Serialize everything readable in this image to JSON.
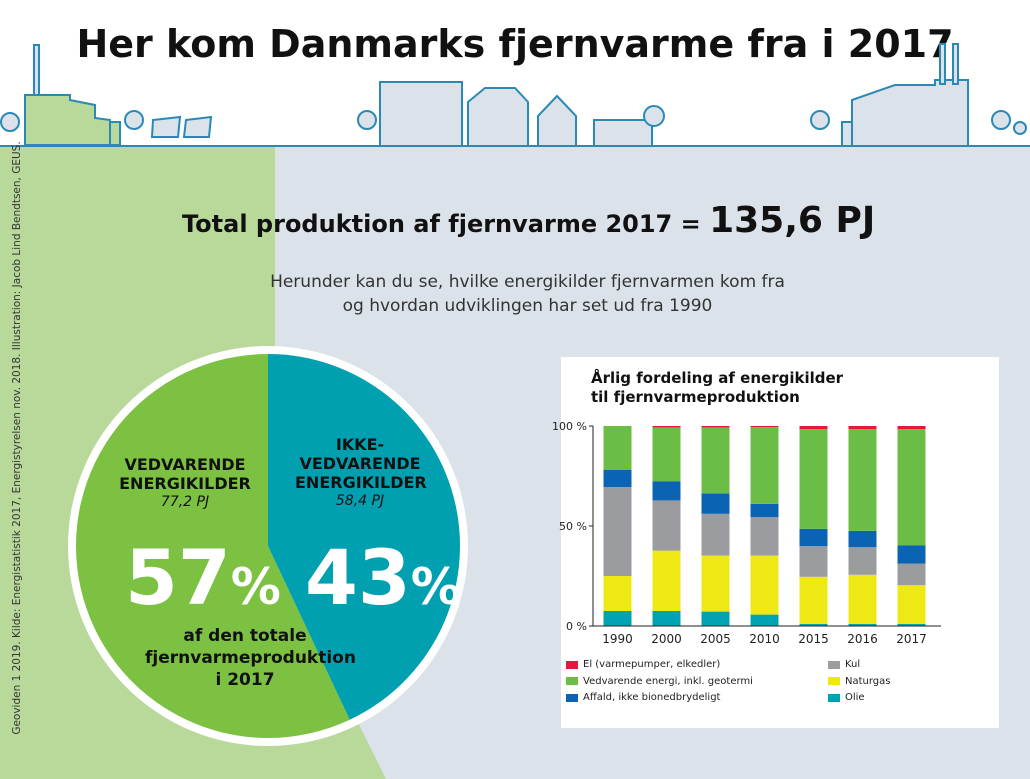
{
  "title": "Her kom Danmarks fjernvarme fra i 2017",
  "total": {
    "label": "Total produktion af fjernvarme 2017 =",
    "value": "135,6 PJ"
  },
  "subtitle": [
    "Herunder kan du se, hvilke energikilder fjernvarmen kom fra",
    "og hvordan udviklingen har set ud fra 1990"
  ],
  "credit": "Geoviden 1 2019. Kilde: Energistatistik 2017, Energistyrelsen nov. 2018. Illustration: Jacob Lind Bendtsen, GEUS.",
  "pie": {
    "renewable": {
      "label1": "VEDVARENDE",
      "label2": "ENERGIKILDER",
      "pj": "77,2 PJ",
      "pct": "57",
      "pct_value": 57,
      "color": "#7dc142"
    },
    "nonrenewable": {
      "label1": "IKKE-",
      "label2": "VEDVARENDE",
      "label3": "ENERGIKILDER",
      "pj": "58,4 PJ",
      "pct": "43",
      "pct_value": 43,
      "color": "#00a0b0"
    },
    "pct_sign": "%",
    "caption": [
      "af den totale",
      "fjernvarmeproduktion",
      "i 2017"
    ]
  },
  "chart_data": {
    "type": "bar",
    "stacked": true,
    "title": [
      "Årlig fordeling af energikilder",
      "til fjernvarmeproduktion"
    ],
    "categories": [
      "1990",
      "2000",
      "2005",
      "2010",
      "2015",
      "2016",
      "2017"
    ],
    "ylim": [
      0,
      100
    ],
    "yticks": [
      {
        "v": 0,
        "label": "0 %"
      },
      {
        "v": 50,
        "label": "50 %"
      },
      {
        "v": 100,
        "label": "100 %"
      }
    ],
    "series": [
      {
        "name": "Olie",
        "color": "#00a3b4",
        "values": [
          7.5,
          7.5,
          7.2,
          5.7,
          1,
          1,
          1
        ]
      },
      {
        "name": "Naturgas",
        "color": "#eee815",
        "values": [
          17.5,
          30.2,
          28,
          29.5,
          23.6,
          24.6,
          19.4
        ]
      },
      {
        "name": "Kul",
        "color": "#9b9c9f",
        "values": [
          44.5,
          25.1,
          20.9,
          19.2,
          15.3,
          13.8,
          10.8
        ]
      },
      {
        "name": "Affald, ikke bionedbrydeligt",
        "color": "#0b63b4",
        "values": [
          8.5,
          9.6,
          10.2,
          6.7,
          8.7,
          8.2,
          9.2
        ]
      },
      {
        "name": "Vedvarende energi, inkl. geotermi",
        "color": "#6bbd45",
        "values": [
          22,
          26.9,
          33,
          38.4,
          49.9,
          50.9,
          58.1
        ]
      },
      {
        "name": "El (varmepumper, elkedler)",
        "color": "#e3173f",
        "values": [
          0,
          0.7,
          0.7,
          0.5,
          1.5,
          1.5,
          1.5
        ]
      }
    ],
    "legend_order": [
      5,
      2,
      4,
      1,
      3,
      0
    ]
  }
}
